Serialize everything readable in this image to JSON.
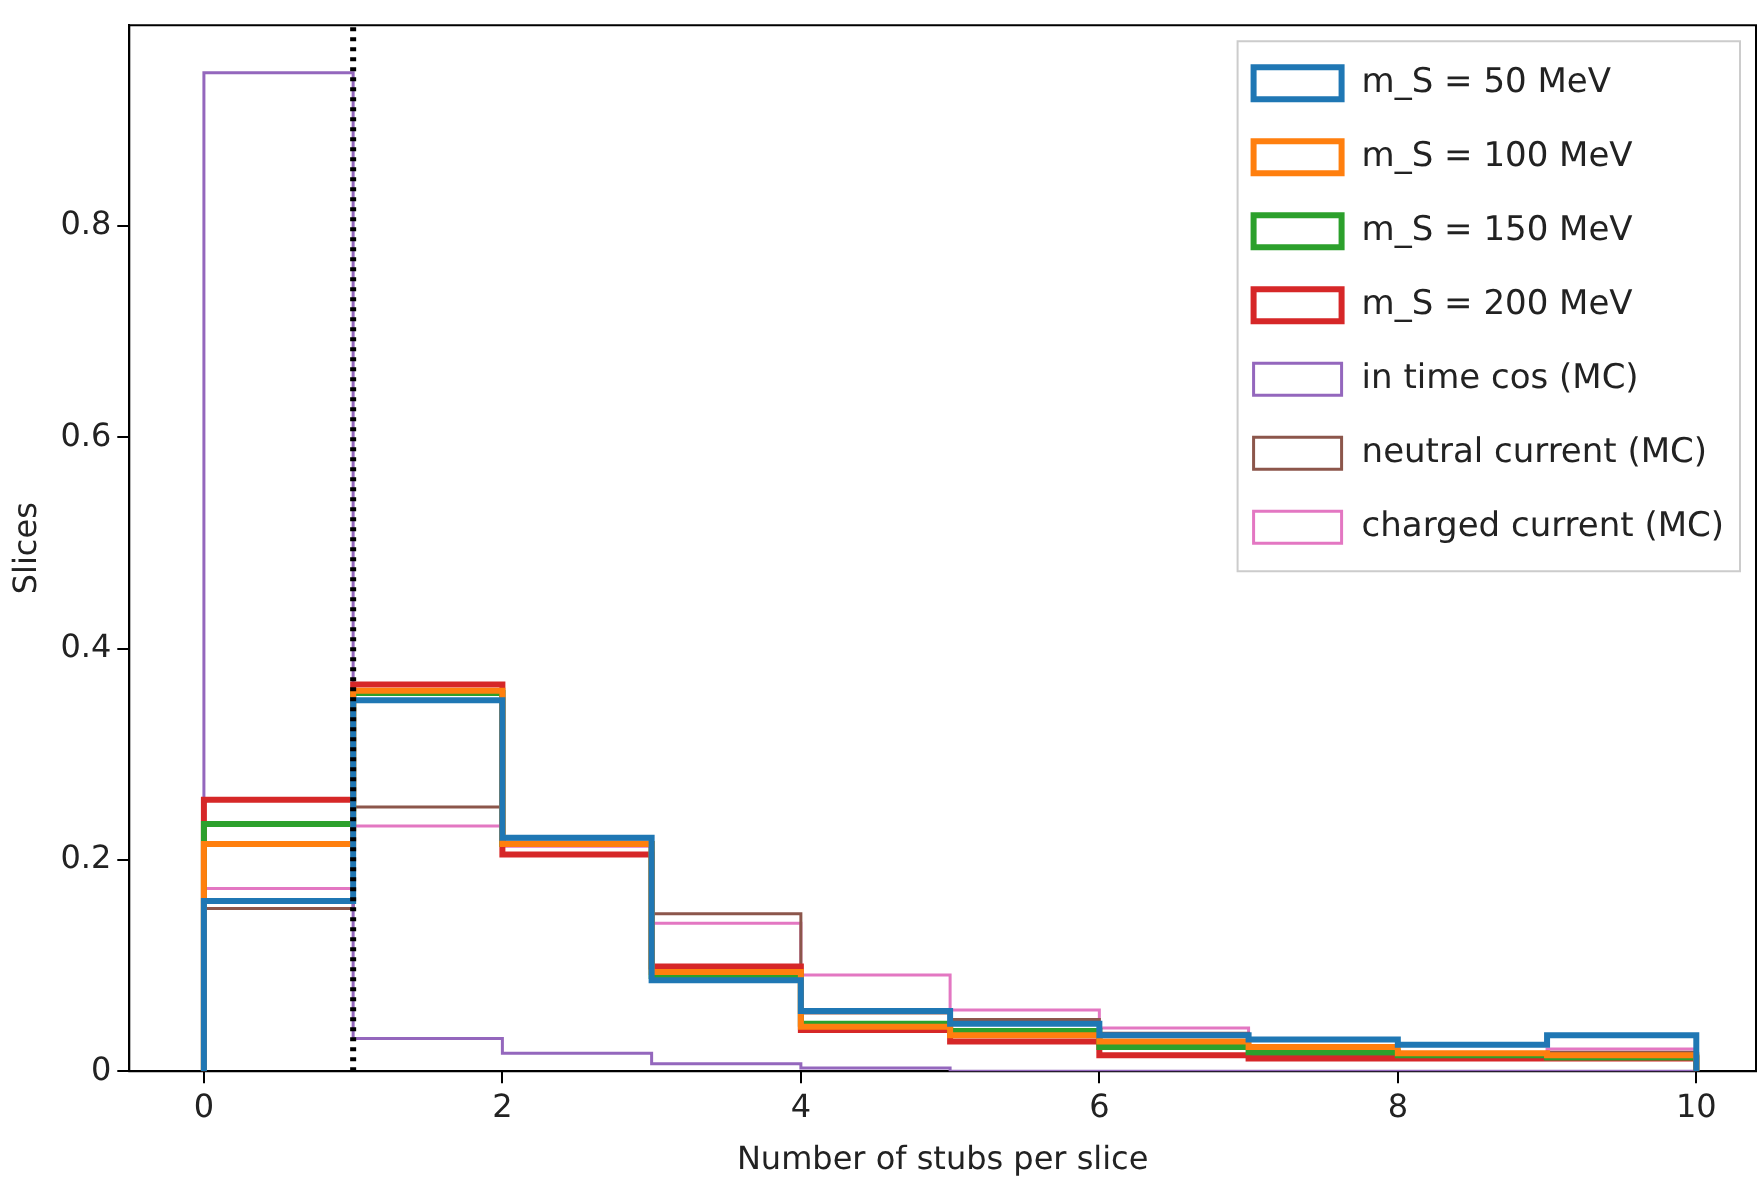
{
  "chart_data": {
    "type": "histogram",
    "xlabel": "Number of stubs per slice",
    "ylabel": "Slices",
    "bins": [
      0,
      1,
      2,
      3,
      4,
      5,
      6,
      7,
      8,
      9,
      10
    ],
    "series": [
      {
        "name": "m_S = 50 MeV",
        "color": "#1f77b4",
        "values": [
          0.161,
          0.351,
          0.221,
          0.086,
          0.057,
          0.045,
          0.034,
          0.03,
          0.025,
          0.034
        ]
      },
      {
        "name": "m_S = 100 MeV",
        "color": "#ff7f0e",
        "values": [
          0.215,
          0.36,
          0.215,
          0.094,
          0.042,
          0.034,
          0.028,
          0.023,
          0.017,
          0.015
        ]
      },
      {
        "name": "m_S = 150 MeV",
        "color": "#2ca02c",
        "values": [
          0.234,
          0.358,
          0.215,
          0.09,
          0.045,
          0.038,
          0.023,
          0.018,
          0.015,
          0.013
        ]
      },
      {
        "name": "m_S = 200 MeV",
        "color": "#d62728",
        "values": [
          0.257,
          0.366,
          0.205,
          0.099,
          0.039,
          0.028,
          0.015,
          0.012,
          0.012,
          0.012
        ]
      },
      {
        "name": "in time cos (MC)",
        "color": "#9467bd",
        "values": [
          0.945,
          0.031,
          0.017,
          0.007,
          0.003,
          0,
          0,
          0,
          0,
          0
        ]
      },
      {
        "name": "neutral current (MC)",
        "color": "#8c564b",
        "values": [
          0.154,
          0.25,
          0.217,
          0.149,
          0.055,
          0.049,
          0.036,
          0.015,
          0.015,
          0.018
        ]
      },
      {
        "name": "charged current (MC)",
        "color": "#e377c2",
        "values": [
          0.173,
          0.232,
          0.213,
          0.14,
          0.091,
          0.058,
          0.041,
          0.015,
          0.017,
          0.021
        ]
      }
    ],
    "xlim": [
      -0.5,
      10.4
    ],
    "ylim": [
      0,
      0.99
    ],
    "xticks": [
      0,
      2,
      4,
      6,
      8,
      10
    ],
    "yticks": [
      0,
      0.2,
      0.4,
      0.6,
      0.8
    ],
    "ref_lines": [
      {
        "axis": "x",
        "value": 1,
        "color": "#000000",
        "line_style": "dotted"
      }
    ],
    "grid": false,
    "legend": "top right"
  }
}
